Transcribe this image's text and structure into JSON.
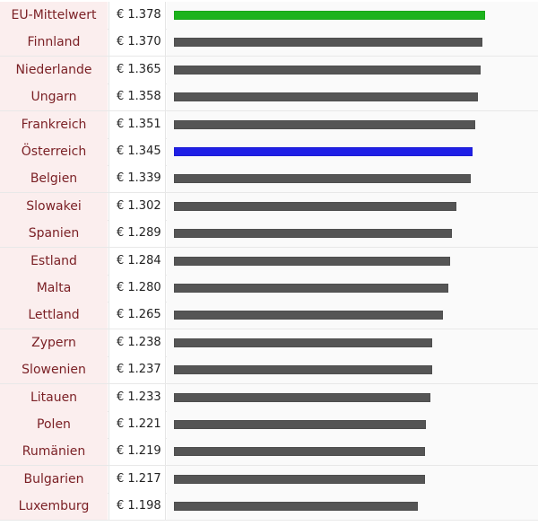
{
  "chart_data": {
    "type": "bar",
    "orientation": "horizontal",
    "currency_prefix": "€",
    "rows": [
      {
        "country": "EU-Mittelwert",
        "value_label": "€ 1.378",
        "value": 1.378,
        "highlight": "eu"
      },
      {
        "country": "Finnland",
        "value_label": "€ 1.370",
        "value": 1.37
      },
      {
        "country": "Niederlande",
        "value_label": "€ 1.365",
        "value": 1.365
      },
      {
        "country": "Ungarn",
        "value_label": "€ 1.358",
        "value": 1.358
      },
      {
        "country": "Frankreich",
        "value_label": "€ 1.351",
        "value": 1.351
      },
      {
        "country": "Österreich",
        "value_label": "€ 1.345",
        "value": 1.345,
        "highlight": "at"
      },
      {
        "country": "Belgien",
        "value_label": "€ 1.339",
        "value": 1.339
      },
      {
        "country": "Slowakei",
        "value_label": "€ 1.302",
        "value": 1.302
      },
      {
        "country": "Spanien",
        "value_label": "€ 1.289",
        "value": 1.289
      },
      {
        "country": "Estland",
        "value_label": "€ 1.284",
        "value": 1.284
      },
      {
        "country": "Malta",
        "value_label": "€ 1.280",
        "value": 1.28
      },
      {
        "country": "Lettland",
        "value_label": "€ 1.265",
        "value": 1.265
      },
      {
        "country": "Zypern",
        "value_label": "€ 1.238",
        "value": 1.238
      },
      {
        "country": "Slowenien",
        "value_label": "€ 1.237",
        "value": 1.237
      },
      {
        "country": "Litauen",
        "value_label": "€ 1.233",
        "value": 1.233
      },
      {
        "country": "Polen",
        "value_label": "€ 1.221",
        "value": 1.221
      },
      {
        "country": "Rumänien",
        "value_label": "€ 1.219",
        "value": 1.219
      },
      {
        "country": "Bulgarien",
        "value_label": "€ 1.217",
        "value": 1.217
      },
      {
        "country": "Luxemburg",
        "value_label": "€ 1.198",
        "value": 1.198
      }
    ],
    "colors": {
      "default_bar": "#555555",
      "eu_bar": "#1cb31c",
      "highlight_bar": "#1f1fe6",
      "label_text": "#7a1f24",
      "label_background": "#fbeeee"
    }
  }
}
